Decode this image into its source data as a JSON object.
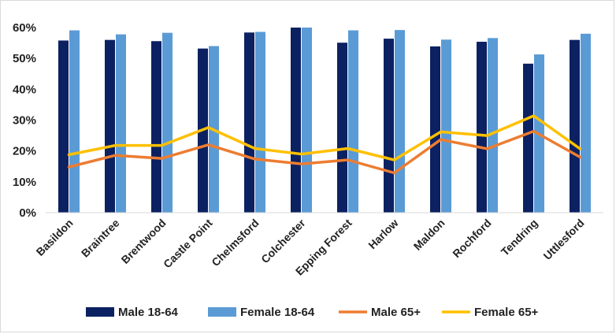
{
  "chart_data": {
    "type": "bar",
    "categories": [
      "Basildon",
      "Braintree",
      "Brentwood",
      "Castle Point",
      "Chelmsford",
      "Colchester",
      "Epping Forest",
      "Harlow",
      "Maldon",
      "Rochford",
      "Tendring",
      "Uttlesford"
    ],
    "ylim": [
      0,
      60
    ],
    "yticks": [
      "0%",
      "10%",
      "20%",
      "30%",
      "40%",
      "50%",
      "60%"
    ],
    "ytick_values": [
      0,
      10,
      20,
      30,
      40,
      50,
      60
    ],
    "grid": false,
    "legend_position": "bottom",
    "series": [
      {
        "name": "Male 18-64",
        "type": "bar",
        "color": "#0b2161",
        "values": [
          55.8,
          56.0,
          55.6,
          53.2,
          58.4,
          60.0,
          55.1,
          56.4,
          53.9,
          55.4,
          48.3,
          56.0
        ]
      },
      {
        "name": "Female 18-64",
        "type": "bar",
        "color": "#5b9bd5",
        "values": [
          59.1,
          57.8,
          58.3,
          54.0,
          58.6,
          60.0,
          59.1,
          59.2,
          56.1,
          56.6,
          51.3,
          58.0
        ]
      },
      {
        "name": "Male 65+",
        "type": "line",
        "color": "#ed7d31",
        "values": [
          14.8,
          18.6,
          17.6,
          22.0,
          17.4,
          15.8,
          17.1,
          12.9,
          23.7,
          20.7,
          26.4,
          18.0
        ]
      },
      {
        "name": "Female 65+",
        "type": "line",
        "color": "#ffc000",
        "values": [
          18.8,
          21.8,
          21.8,
          27.6,
          20.8,
          19.0,
          20.8,
          17.1,
          26.2,
          25.0,
          31.4,
          20.7
        ]
      }
    ]
  }
}
